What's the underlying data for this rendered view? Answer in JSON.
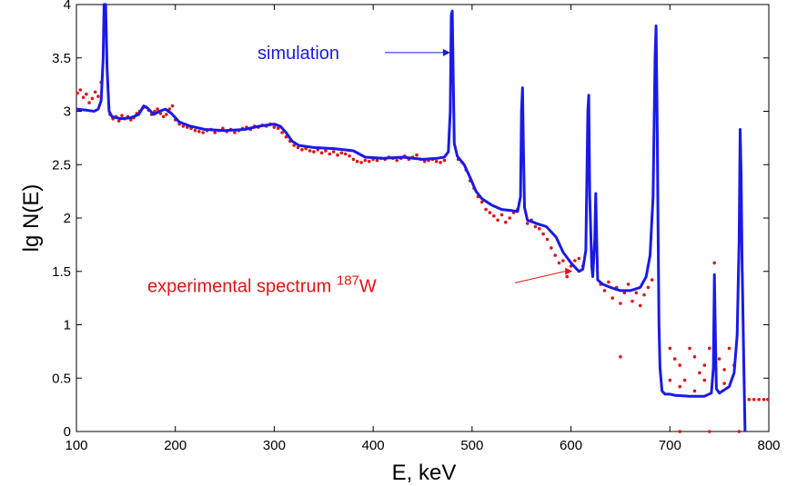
{
  "chart_data": {
    "type": "line",
    "title": "",
    "xlabel": "E, keV",
    "ylabel": "lg N(E)",
    "xlim": [
      100,
      800
    ],
    "ylim": [
      0,
      4
    ],
    "xticks": [
      100,
      200,
      300,
      400,
      500,
      600,
      700,
      800
    ],
    "yticks": [
      0,
      0.5,
      1,
      1.5,
      2,
      2.5,
      3,
      3.5,
      4
    ],
    "ytick_labels": [
      "0",
      "0.5",
      "1",
      "1.5",
      "2",
      "2.5",
      "3",
      "3.5",
      "4"
    ],
    "grid": false,
    "colors": {
      "simulation": "#1a1ae6",
      "experiment": "#e01414",
      "axes": "#000000"
    },
    "annotations": [
      {
        "id": "sim",
        "text": "simulation",
        "x": 388,
        "y": 3.55,
        "arrow_to": [
          478,
          3.55
        ]
      },
      {
        "id": "exp",
        "text_main": "experimental spectrum ",
        "sup": "187",
        "text_tail": "W",
        "x": 118,
        "y": 1.35,
        "arrow_to": [
          596,
          1.45
        ]
      }
    ],
    "series": [
      {
        "style": "line",
        "points": [
          [
            100,
            3.02
          ],
          [
            110,
            3.01
          ],
          [
            118,
            3.0
          ],
          [
            122,
            3.02
          ],
          [
            125,
            3.1
          ],
          [
            127,
            3.5
          ],
          [
            128,
            4.0
          ],
          [
            129.5,
            4.0
          ],
          [
            131,
            3.4
          ],
          [
            133,
            3.0
          ],
          [
            136,
            2.95
          ],
          [
            145,
            2.93
          ],
          [
            155,
            2.94
          ],
          [
            163,
            2.97
          ],
          [
            168,
            3.05
          ],
          [
            172,
            3.03
          ],
          [
            178,
            2.97
          ],
          [
            184,
            3.0
          ],
          [
            190,
            3.02
          ],
          [
            196,
            2.98
          ],
          [
            204,
            2.9
          ],
          [
            215,
            2.86
          ],
          [
            230,
            2.83
          ],
          [
            250,
            2.82
          ],
          [
            270,
            2.83
          ],
          [
            285,
            2.86
          ],
          [
            300,
            2.88
          ],
          [
            306,
            2.86
          ],
          [
            312,
            2.8
          ],
          [
            318,
            2.72
          ],
          [
            325,
            2.68
          ],
          [
            340,
            2.66
          ],
          [
            360,
            2.65
          ],
          [
            380,
            2.63
          ],
          [
            386,
            2.6
          ],
          [
            392,
            2.57
          ],
          [
            410,
            2.56
          ],
          [
            430,
            2.57
          ],
          [
            450,
            2.55
          ],
          [
            465,
            2.56
          ],
          [
            472,
            2.57
          ],
          [
            476,
            2.62
          ],
          [
            478,
            3.0
          ],
          [
            479,
            3.9
          ],
          [
            480,
            3.94
          ],
          [
            481,
            3.3
          ],
          [
            482,
            2.7
          ],
          [
            485,
            2.58
          ],
          [
            492,
            2.5
          ],
          [
            498,
            2.38
          ],
          [
            504,
            2.25
          ],
          [
            510,
            2.18
          ],
          [
            520,
            2.12
          ],
          [
            530,
            2.08
          ],
          [
            540,
            2.07
          ],
          [
            546,
            2.06
          ],
          [
            549,
            2.2
          ],
          [
            550,
            3.0
          ],
          [
            551,
            3.22
          ],
          [
            552,
            2.6
          ],
          [
            553,
            2.1
          ],
          [
            556,
            1.98
          ],
          [
            565,
            1.95
          ],
          [
            575,
            1.92
          ],
          [
            585,
            1.82
          ],
          [
            592,
            1.68
          ],
          [
            600,
            1.58
          ],
          [
            608,
            1.5
          ],
          [
            612,
            1.52
          ],
          [
            615,
            1.7
          ],
          [
            617,
            3.0
          ],
          [
            618,
            3.15
          ],
          [
            619,
            2.2
          ],
          [
            621,
            1.55
          ],
          [
            622,
            1.45
          ],
          [
            624,
            1.8
          ],
          [
            625,
            2.23
          ],
          [
            626,
            1.8
          ],
          [
            627,
            1.42
          ],
          [
            632,
            1.38
          ],
          [
            640,
            1.35
          ],
          [
            650,
            1.32
          ],
          [
            660,
            1.32
          ],
          [
            670,
            1.35
          ],
          [
            676,
            1.45
          ],
          [
            680,
            1.65
          ],
          [
            683,
            2.2
          ],
          [
            685,
            3.5
          ],
          [
            686,
            3.8
          ],
          [
            687,
            3.0
          ],
          [
            688,
            2.0
          ],
          [
            689,
            1.0
          ],
          [
            690,
            0.6
          ],
          [
            692,
            0.38
          ],
          [
            695,
            0.35
          ],
          [
            700,
            0.35
          ],
          [
            705,
            0.34
          ],
          [
            720,
            0.33
          ],
          [
            735,
            0.33
          ],
          [
            742,
            0.36
          ],
          [
            744,
            0.6
          ],
          [
            745,
            1.47
          ],
          [
            746,
            0.9
          ],
          [
            747,
            0.4
          ],
          [
            750,
            0.36
          ],
          [
            760,
            0.42
          ],
          [
            765,
            0.55
          ],
          [
            768,
            0.9
          ],
          [
            770,
            1.8
          ],
          [
            771,
            2.83
          ],
          [
            772,
            2.4
          ],
          [
            773,
            1.6
          ],
          [
            775,
            0.5
          ],
          [
            776,
            0.0
          ]
        ]
      },
      {
        "style": "dots",
        "points": [
          [
            101,
            3.17
          ],
          [
            104,
            3.2
          ],
          [
            107,
            3.13
          ],
          [
            110,
            3.16
          ],
          [
            113,
            3.08
          ],
          [
            116,
            3.12
          ],
          [
            119,
            3.18
          ],
          [
            122,
            3.14
          ],
          [
            125,
            3.27
          ],
          [
            134,
            2.97
          ],
          [
            137,
            2.93
          ],
          [
            140,
            2.95
          ],
          [
            143,
            2.91
          ],
          [
            146,
            2.96
          ],
          [
            149,
            2.93
          ],
          [
            152,
            2.95
          ],
          [
            155,
            2.92
          ],
          [
            158,
            2.94
          ],
          [
            161,
            2.98
          ],
          [
            164,
            3.0
          ],
          [
            167,
            3.03
          ],
          [
            170,
            3.04
          ],
          [
            173,
            3.01
          ],
          [
            176,
            2.97
          ],
          [
            179,
            3.0
          ],
          [
            182,
            3.02
          ],
          [
            185,
            2.98
          ],
          [
            188,
            2.95
          ],
          [
            191,
            2.97
          ],
          [
            194,
            3.02
          ],
          [
            197,
            3.05
          ],
          [
            200,
            2.92
          ],
          [
            204,
            2.88
          ],
          [
            208,
            2.86
          ],
          [
            212,
            2.85
          ],
          [
            216,
            2.84
          ],
          [
            220,
            2.82
          ],
          [
            224,
            2.81
          ],
          [
            228,
            2.8
          ],
          [
            232,
            2.82
          ],
          [
            236,
            2.83
          ],
          [
            240,
            2.8
          ],
          [
            244,
            2.82
          ],
          [
            248,
            2.84
          ],
          [
            252,
            2.81
          ],
          [
            256,
            2.83
          ],
          [
            260,
            2.8
          ],
          [
            264,
            2.82
          ],
          [
            268,
            2.84
          ],
          [
            272,
            2.85
          ],
          [
            276,
            2.83
          ],
          [
            280,
            2.86
          ],
          [
            284,
            2.85
          ],
          [
            288,
            2.87
          ],
          [
            292,
            2.86
          ],
          [
            296,
            2.88
          ],
          [
            300,
            2.85
          ],
          [
            304,
            2.84
          ],
          [
            308,
            2.8
          ],
          [
            312,
            2.76
          ],
          [
            316,
            2.72
          ],
          [
            320,
            2.68
          ],
          [
            324,
            2.66
          ],
          [
            328,
            2.64
          ],
          [
            332,
            2.65
          ],
          [
            336,
            2.63
          ],
          [
            340,
            2.62
          ],
          [
            344,
            2.64
          ],
          [
            348,
            2.61
          ],
          [
            352,
            2.63
          ],
          [
            356,
            2.6
          ],
          [
            360,
            2.62
          ],
          [
            364,
            2.59
          ],
          [
            368,
            2.61
          ],
          [
            372,
            2.6
          ],
          [
            376,
            2.58
          ],
          [
            380,
            2.55
          ],
          [
            384,
            2.53
          ],
          [
            388,
            2.52
          ],
          [
            392,
            2.54
          ],
          [
            396,
            2.53
          ],
          [
            400,
            2.55
          ],
          [
            404,
            2.54
          ],
          [
            408,
            2.56
          ],
          [
            412,
            2.55
          ],
          [
            416,
            2.57
          ],
          [
            420,
            2.56
          ],
          [
            424,
            2.54
          ],
          [
            428,
            2.56
          ],
          [
            432,
            2.58
          ],
          [
            436,
            2.55
          ],
          [
            440,
            2.57
          ],
          [
            444,
            2.59
          ],
          [
            448,
            2.55
          ],
          [
            452,
            2.53
          ],
          [
            456,
            2.54
          ],
          [
            460,
            2.55
          ],
          [
            464,
            2.53
          ],
          [
            468,
            2.52
          ],
          [
            472,
            2.54
          ],
          [
            486,
            2.55
          ],
          [
            490,
            2.52
          ],
          [
            494,
            2.45
          ],
          [
            498,
            2.35
          ],
          [
            502,
            2.28
          ],
          [
            506,
            2.2
          ],
          [
            510,
            2.15
          ],
          [
            514,
            2.08
          ],
          [
            518,
            2.05
          ],
          [
            522,
            2.02
          ],
          [
            526,
            1.98
          ],
          [
            530,
            2.03
          ],
          [
            534,
            1.96
          ],
          [
            538,
            2.0
          ],
          [
            542,
            2.05
          ],
          [
            546,
            2.08
          ],
          [
            556,
            1.95
          ],
          [
            560,
            1.98
          ],
          [
            564,
            1.92
          ],
          [
            568,
            1.9
          ],
          [
            572,
            1.85
          ],
          [
            576,
            1.8
          ],
          [
            580,
            1.72
          ],
          [
            584,
            1.65
          ],
          [
            588,
            1.58
          ],
          [
            592,
            1.6
          ],
          [
            596,
            1.45
          ],
          [
            600,
            1.55
          ],
          [
            604,
            1.6
          ],
          [
            608,
            1.62
          ],
          [
            612,
            1.55
          ],
          [
            630,
            1.38
          ],
          [
            634,
            1.32
          ],
          [
            638,
            1.4
          ],
          [
            642,
            1.25
          ],
          [
            646,
            1.35
          ],
          [
            650,
            1.2
          ],
          [
            654,
            1.3
          ],
          [
            658,
            1.38
          ],
          [
            662,
            1.22
          ],
          [
            666,
            1.3
          ],
          [
            670,
            1.18
          ],
          [
            674,
            1.28
          ],
          [
            678,
            1.35
          ],
          [
            682,
            1.42
          ],
          [
            650,
            0.7
          ],
          [
            700,
            0.78
          ],
          [
            705,
            0.68
          ],
          [
            710,
            0.62
          ],
          [
            715,
            0.48
          ],
          [
            720,
            0.78
          ],
          [
            725,
            0.7
          ],
          [
            730,
            0.55
          ],
          [
            735,
            0.62
          ],
          [
            740,
            0.78
          ],
          [
            750,
            0.68
          ],
          [
            755,
            0.58
          ],
          [
            760,
            0.78
          ],
          [
            765,
            0.62
          ],
          [
            745,
            1.58
          ],
          [
            700,
            0.48
          ],
          [
            710,
            0.42
          ],
          [
            725,
            0.38
          ],
          [
            735,
            0.48
          ],
          [
            755,
            0.45
          ],
          [
            780,
            0.3
          ],
          [
            785,
            0.3
          ],
          [
            790,
            0.3
          ],
          [
            795,
            0.3
          ],
          [
            799,
            0.3
          ],
          [
            710,
            0.0
          ],
          [
            740,
            0.0
          ],
          [
            770,
            0.0
          ]
        ]
      }
    ]
  }
}
